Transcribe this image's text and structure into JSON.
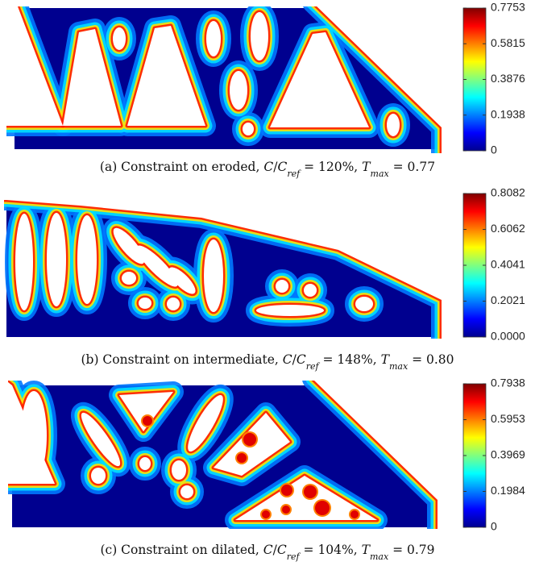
{
  "figures": [
    {
      "caption": [
        "(a) Constraint on eroded, ",
        "C",
        "/",
        "C",
        "ref",
        " = 120%, ",
        "T",
        "max",
        " = 0.77"
      ],
      "colorbar": {
        "clim": [
          0,
          0.7753
        ],
        "ticks": [
          0,
          0.1938,
          0.3876,
          0.5815,
          0.7753
        ]
      }
    },
    {
      "caption": [
        "(b) Constraint on intermediate, ",
        "C",
        "/",
        "C",
        "ref",
        " = 148%, ",
        "T",
        "max",
        " = 0.80"
      ],
      "colorbar": {
        "clim": [
          0,
          0.8082
        ],
        "ticks": [
          {
            "value": 0,
            "label": "0.0000"
          },
          0.2021,
          0.4041,
          0.6062,
          0.8082
        ]
      }
    },
    {
      "caption": [
        "(c) Constraint on dilated, ",
        "C",
        "/",
        "C",
        "ref",
        " = 104%, ",
        "T",
        "max",
        " = 0.79"
      ],
      "colorbar": {
        "clim": [
          0,
          0.7938
        ],
        "ticks": [
          0,
          0.1984,
          0.3969,
          0.5953,
          0.7938
        ]
      }
    }
  ]
}
